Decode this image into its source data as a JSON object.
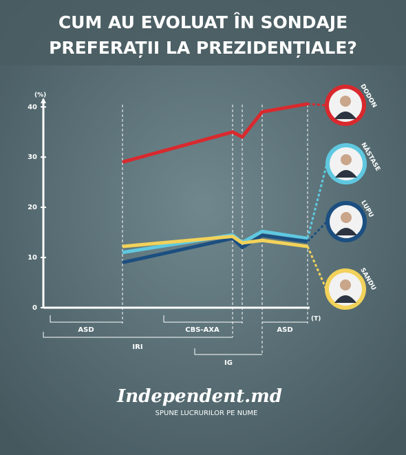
{
  "chart_data": {
    "type": "line",
    "title": [
      "CUM AU EVOLUAT ÎN SONDAJE",
      "PREFERAȚII LA PREZIDENȚIALE?"
    ],
    "y_label": "(%)",
    "x_label": "(T)",
    "categories": [
      null,
      null,
      null,
      null,
      null
    ],
    "series": [
      {
        "name": "DODON",
        "color": "#d9292e",
        "values": [
          29,
          35,
          34,
          39,
          40.6
        ]
      },
      {
        "name": "NĂSTASE",
        "color": "#5fc8e0",
        "values": [
          11,
          14.5,
          13,
          15.2,
          13.8
        ]
      },
      {
        "name": "LUPU",
        "color": "#1c4f80",
        "values": [
          9,
          13.8,
          12,
          14.4,
          13.2
        ]
      },
      {
        "name": "SANDU",
        "color": "#f2d25a",
        "values": [
          12.2,
          14.2,
          12.9,
          13.4,
          12.2
        ]
      }
    ],
    "ylim": [
      0,
      41
    ],
    "yticks": [
      0,
      10,
      20,
      30,
      40
    ],
    "annotations": [
      "ASD",
      "CBS-AXA",
      "ASD",
      "IRI",
      "IG"
    ],
    "footer": {
      "logo": "Independent.md",
      "slogan": "SPUNE LUCRURILOR PE NUME"
    }
  }
}
